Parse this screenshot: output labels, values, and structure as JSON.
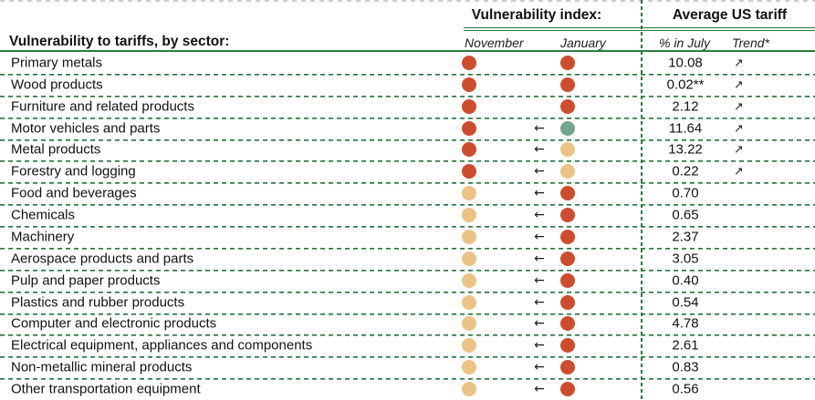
{
  "header": {
    "sector_column_title": "Vulnerability to tariffs, by sector:",
    "vulnerability_group_title": "Vulnerability index:",
    "tariff_group_title": "Average US tariff",
    "col_november": "November",
    "col_january": "January",
    "col_pct_july": "% in July",
    "col_trend": "Trend*"
  },
  "glyphs": {
    "shift_left_arrow": "←",
    "trend_up_arrow": "↗"
  },
  "colors": {
    "high_vulnerability_red": "#ce4c2e",
    "medium_vulnerability_amber": "#ecc386",
    "low_vulnerability_teal": "#74a58d",
    "rule_green": "#2b7a41",
    "top_border_gray": "#cccccc"
  },
  "chart_data": {
    "type": "table",
    "title": "Vulnerability to tariffs, by sector:",
    "column_groups": [
      "Vulnerability index:",
      "Average US tariff"
    ],
    "columns": [
      "Sector",
      "November",
      "January",
      "% in July",
      "Trend*"
    ],
    "dot_legend": {
      "high": "red",
      "medium": "amber",
      "low": "teal"
    },
    "rows": [
      {
        "sector": "Primary metals",
        "november": "high",
        "january": "high",
        "shift": false,
        "tariff": "10.08",
        "trend": "up"
      },
      {
        "sector": "Wood products",
        "november": "high",
        "january": "high",
        "shift": false,
        "tariff": "0.02**",
        "trend": "up"
      },
      {
        "sector": "Furniture and related products",
        "november": "high",
        "january": "high",
        "shift": false,
        "tariff": "2.12",
        "trend": "up"
      },
      {
        "sector": "Motor vehicles and parts",
        "november": "high",
        "january": "low",
        "shift": true,
        "tariff": "11.64",
        "trend": "up"
      },
      {
        "sector": "Metal products",
        "november": "high",
        "january": "medium",
        "shift": true,
        "tariff": "13.22",
        "trend": "up"
      },
      {
        "sector": "Forestry and logging",
        "november": "high",
        "january": "medium",
        "shift": true,
        "tariff": "0.22",
        "trend": "up"
      },
      {
        "sector": "Food and beverages",
        "november": "medium",
        "january": "high",
        "shift": true,
        "tariff": "0.70",
        "trend": null
      },
      {
        "sector": "Chemicals",
        "november": "medium",
        "january": "high",
        "shift": true,
        "tariff": "0.65",
        "trend": null
      },
      {
        "sector": "Machinery",
        "november": "medium",
        "january": "high",
        "shift": true,
        "tariff": "2.37",
        "trend": null
      },
      {
        "sector": "Aerospace products and parts",
        "november": "medium",
        "january": "high",
        "shift": true,
        "tariff": "3.05",
        "trend": null
      },
      {
        "sector": "Pulp and paper products",
        "november": "medium",
        "january": "high",
        "shift": true,
        "tariff": "0.40",
        "trend": null
      },
      {
        "sector": "Plastics and rubber products",
        "november": "medium",
        "january": "high",
        "shift": true,
        "tariff": "0.54",
        "trend": null
      },
      {
        "sector": "Computer and electronic products",
        "november": "medium",
        "january": "high",
        "shift": true,
        "tariff": "4.78",
        "trend": null
      },
      {
        "sector": "Electrical equipment, appliances and components",
        "november": "medium",
        "january": "high",
        "shift": true,
        "tariff": "2.61",
        "trend": null
      },
      {
        "sector": "Non-metallic mineral products",
        "november": "medium",
        "january": "high",
        "shift": true,
        "tariff": "0.83",
        "trend": null
      },
      {
        "sector": "Other transportation equipment",
        "november": "medium",
        "january": "high",
        "shift": true,
        "tariff": "0.56",
        "trend": null
      }
    ]
  }
}
